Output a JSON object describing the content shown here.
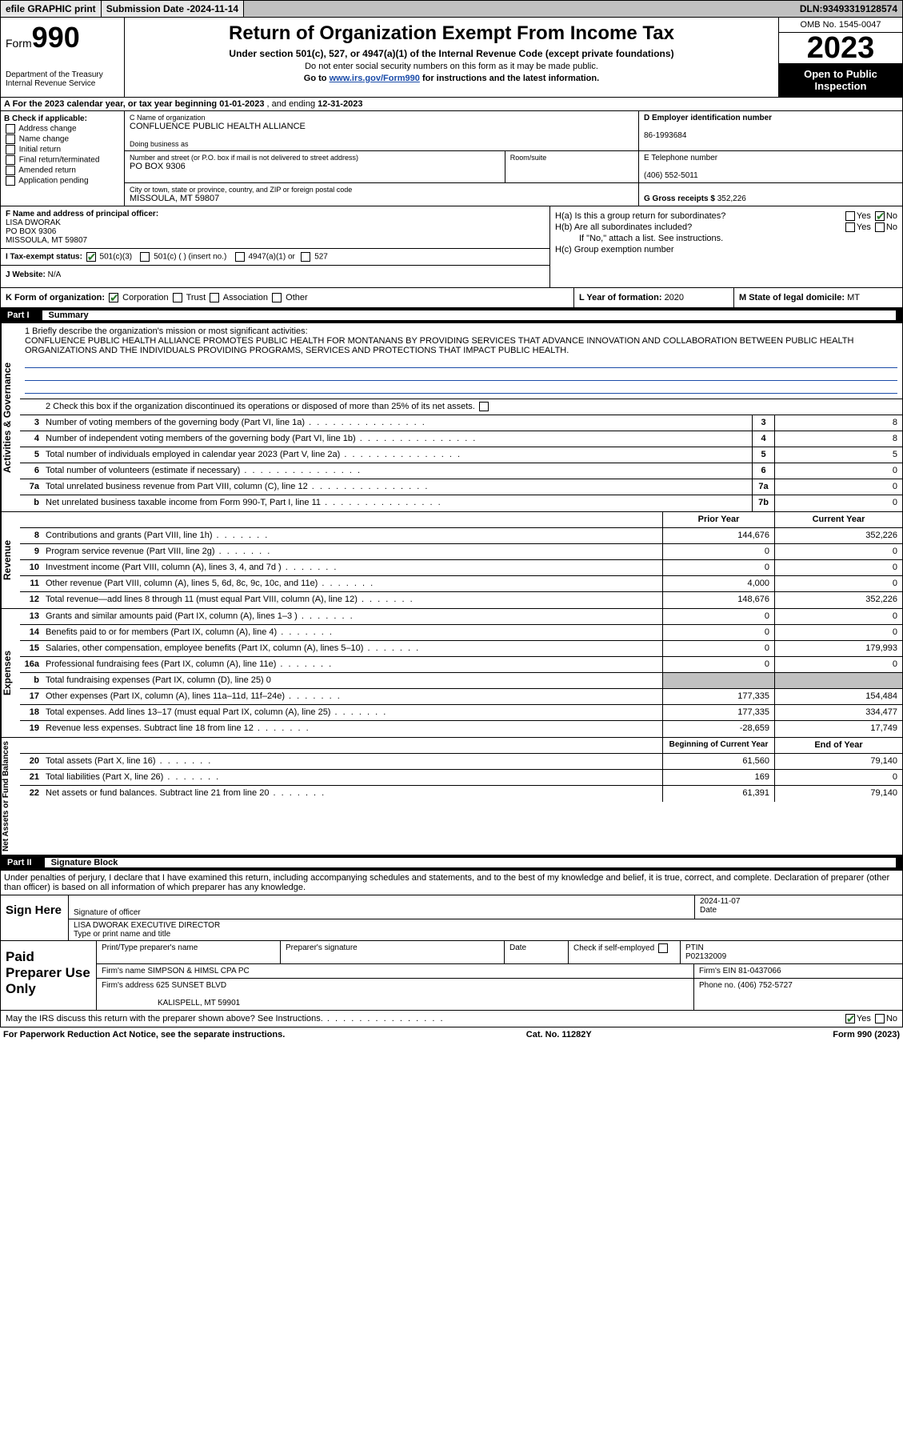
{
  "topbar": {
    "efile": "efile GRAPHIC print",
    "subdate_label": "Submission Date - ",
    "subdate": "2024-11-14",
    "dln_label": "DLN: ",
    "dln": "93493319128574"
  },
  "header": {
    "form_word": "Form",
    "form_num": "990",
    "dept": "Department of the Treasury\nInternal Revenue Service",
    "title": "Return of Organization Exempt From Income Tax",
    "sub1": "Under section 501(c), 527, or 4947(a)(1) of the Internal Revenue Code (except private foundations)",
    "sub2": "Do not enter social security numbers on this form as it may be made public.",
    "goto_pre": "Go to ",
    "goto_link": "www.irs.gov/Form990",
    "goto_post": " for instructions and the latest information.",
    "omb": "OMB No. 1545-0047",
    "year": "2023",
    "inspect": "Open to Public Inspection"
  },
  "rowA": {
    "text_pre": "A For the 2023 calendar year, or tax year beginning ",
    "begin": "01-01-2023",
    "mid": " , and ending ",
    "end": "12-31-2023"
  },
  "colB": {
    "label": "B Check if applicable:",
    "opts": [
      "Address change",
      "Name change",
      "Initial return",
      "Final return/terminated",
      "Amended return",
      "Application pending"
    ]
  },
  "colC": {
    "name_label": "C Name of organization",
    "name": "CONFLUENCE PUBLIC HEALTH ALLIANCE",
    "dba_label": "Doing business as",
    "dba": "",
    "street_label": "Number and street (or P.O. box if mail is not delivered to street address)",
    "room_label": "Room/suite",
    "street": "PO BOX 9306",
    "city_label": "City or town, state or province, country, and ZIP or foreign postal code",
    "city": "MISSOULA, MT  59807"
  },
  "colD": {
    "ein_label": "D Employer identification number",
    "ein": "86-1993684",
    "phone_label": "E Telephone number",
    "phone": "(406) 552-5011",
    "gross_label": "G Gross receipts $ ",
    "gross": "352,226"
  },
  "colF": {
    "label": "F Name and address of principal officer:",
    "name": "LISA DWORAK",
    "street": "PO BOX 9306",
    "city": "MISSOULA, MT  59807"
  },
  "colH": {
    "a": "H(a)  Is this a group return for subordinates?",
    "a_yes": "Yes",
    "a_no": "No",
    "b": "H(b)  Are all subordinates included?",
    "b_yes": "Yes",
    "b_no": "No",
    "b_note": "If \"No,\" attach a list. See instructions.",
    "c": "H(c)  Group exemption number  "
  },
  "rowI": {
    "label": "I   Tax-exempt status:",
    "o1": "501(c)(3)",
    "o2": "501(c) (  ) (insert no.)",
    "o3": "4947(a)(1) or",
    "o4": "527"
  },
  "rowJ": {
    "label": "J   Website: ",
    "val": "N/A"
  },
  "rowK": {
    "label": "K Form of organization:",
    "opts": [
      "Corporation",
      "Trust",
      "Association",
      "Other"
    ],
    "l_label": "L Year of formation: ",
    "l_val": "2020",
    "m_label": "M State of legal domicile: ",
    "m_val": "MT"
  },
  "part1": {
    "num": "Part I",
    "title": "Summary"
  },
  "governance": {
    "vtab": "Activities & Governance",
    "l1_label": "1   Briefly describe the organization's mission or most significant activities:",
    "l1_text": "CONFLUENCE PUBLIC HEALTH ALLIANCE PROMOTES PUBLIC HEALTH FOR MONTANANS BY PROVIDING SERVICES THAT ADVANCE INNOVATION AND COLLABORATION BETWEEN PUBLIC HEALTH ORGANIZATIONS AND THE INDIVIDUALS PROVIDING PROGRAMS, SERVICES AND PROTECTIONS THAT IMPACT PUBLIC HEALTH.",
    "l2": "2   Check this box      if the organization discontinued its operations or disposed of more than 25% of its net assets.",
    "lines": [
      {
        "n": "3",
        "d": "Number of voting members of the governing body (Part VI, line 1a)",
        "b": "3",
        "v": "8"
      },
      {
        "n": "4",
        "d": "Number of independent voting members of the governing body (Part VI, line 1b)",
        "b": "4",
        "v": "8"
      },
      {
        "n": "5",
        "d": "Total number of individuals employed in calendar year 2023 (Part V, line 2a)",
        "b": "5",
        "v": "5"
      },
      {
        "n": "6",
        "d": "Total number of volunteers (estimate if necessary)",
        "b": "6",
        "v": "0"
      },
      {
        "n": "7a",
        "d": "Total unrelated business revenue from Part VIII, column (C), line 12",
        "b": "7a",
        "v": "0"
      },
      {
        "n": "b",
        "d": "Net unrelated business taxable income from Form 990-T, Part I, line 11",
        "b": "7b",
        "v": "0"
      }
    ]
  },
  "revenue": {
    "vtab": "Revenue",
    "head_prior": "Prior Year",
    "head_curr": "Current Year",
    "lines": [
      {
        "n": "8",
        "d": "Contributions and grants (Part VIII, line 1h)",
        "p": "144,676",
        "c": "352,226"
      },
      {
        "n": "9",
        "d": "Program service revenue (Part VIII, line 2g)",
        "p": "0",
        "c": "0"
      },
      {
        "n": "10",
        "d": "Investment income (Part VIII, column (A), lines 3, 4, and 7d )",
        "p": "0",
        "c": "0"
      },
      {
        "n": "11",
        "d": "Other revenue (Part VIII, column (A), lines 5, 6d, 8c, 9c, 10c, and 11e)",
        "p": "4,000",
        "c": "0"
      },
      {
        "n": "12",
        "d": "Total revenue—add lines 8 through 11 (must equal Part VIII, column (A), line 12)",
        "p": "148,676",
        "c": "352,226"
      }
    ]
  },
  "expenses": {
    "vtab": "Expenses",
    "lines": [
      {
        "n": "13",
        "d": "Grants and similar amounts paid (Part IX, column (A), lines 1–3 )",
        "p": "0",
        "c": "0"
      },
      {
        "n": "14",
        "d": "Benefits paid to or for members (Part IX, column (A), line 4)",
        "p": "0",
        "c": "0"
      },
      {
        "n": "15",
        "d": "Salaries, other compensation, employee benefits (Part IX, column (A), lines 5–10)",
        "p": "0",
        "c": "179,993"
      },
      {
        "n": "16a",
        "d": "Professional fundraising fees (Part IX, column (A), line 11e)",
        "p": "0",
        "c": "0"
      },
      {
        "n": "b",
        "d": "Total fundraising expenses (Part IX, column (D), line 25) 0",
        "p": "SHADE",
        "c": "SHADE"
      },
      {
        "n": "17",
        "d": "Other expenses (Part IX, column (A), lines 11a–11d, 11f–24e)",
        "p": "177,335",
        "c": "154,484"
      },
      {
        "n": "18",
        "d": "Total expenses. Add lines 13–17 (must equal Part IX, column (A), line 25)",
        "p": "177,335",
        "c": "334,477"
      },
      {
        "n": "19",
        "d": "Revenue less expenses. Subtract line 18 from line 12",
        "p": "-28,659",
        "c": "17,749"
      }
    ]
  },
  "netassets": {
    "vtab": "Net Assets or Fund Balances",
    "head_begin": "Beginning of Current Year",
    "head_end": "End of Year",
    "lines": [
      {
        "n": "20",
        "d": "Total assets (Part X, line 16)",
        "p": "61,560",
        "c": "79,140"
      },
      {
        "n": "21",
        "d": "Total liabilities (Part X, line 26)",
        "p": "169",
        "c": "0"
      },
      {
        "n": "22",
        "d": "Net assets or fund balances. Subtract line 21 from line 20",
        "p": "61,391",
        "c": "79,140"
      }
    ]
  },
  "part2": {
    "num": "Part II",
    "title": "Signature Block"
  },
  "perjury": "Under penalties of perjury, I declare that I have examined this return, including accompanying schedules and statements, and to the best of my knowledge and belief, it is true, correct, and complete. Declaration of preparer (other than officer) is based on all information of which preparer has any knowledge.",
  "sign": {
    "left": "Sign Here",
    "sig_label": "Signature of officer",
    "date_label": "Date",
    "date": "2024-11-07",
    "name": "LISA DWORAK EXECUTIVE DIRECTOR",
    "name_label": "Type or print name and title"
  },
  "prep": {
    "left": "Paid Preparer Use Only",
    "h1": "Print/Type preparer's name",
    "h2": "Preparer's signature",
    "h3": "Date",
    "h4_pre": "Check         if self-employed",
    "h5": "PTIN",
    "ptin": "P02132009",
    "firm_label": "Firm's name   ",
    "firm": "SIMPSON & HIMSL CPA PC",
    "ein_label": "Firm's EIN  ",
    "ein": "81-0437066",
    "addr_label": "Firm's address ",
    "addr1": "625 SUNSET BLVD",
    "addr2": "KALISPELL, MT  59901",
    "phone_label": "Phone no. ",
    "phone": "(406) 752-5727"
  },
  "discuss": {
    "text": "May the IRS discuss this return with the preparer shown above? See Instructions.",
    "yes": "Yes",
    "no": "No"
  },
  "footer": {
    "left": "For Paperwork Reduction Act Notice, see the separate instructions.",
    "mid": "Cat. No. 11282Y",
    "right": "Form 990 (2023)"
  }
}
